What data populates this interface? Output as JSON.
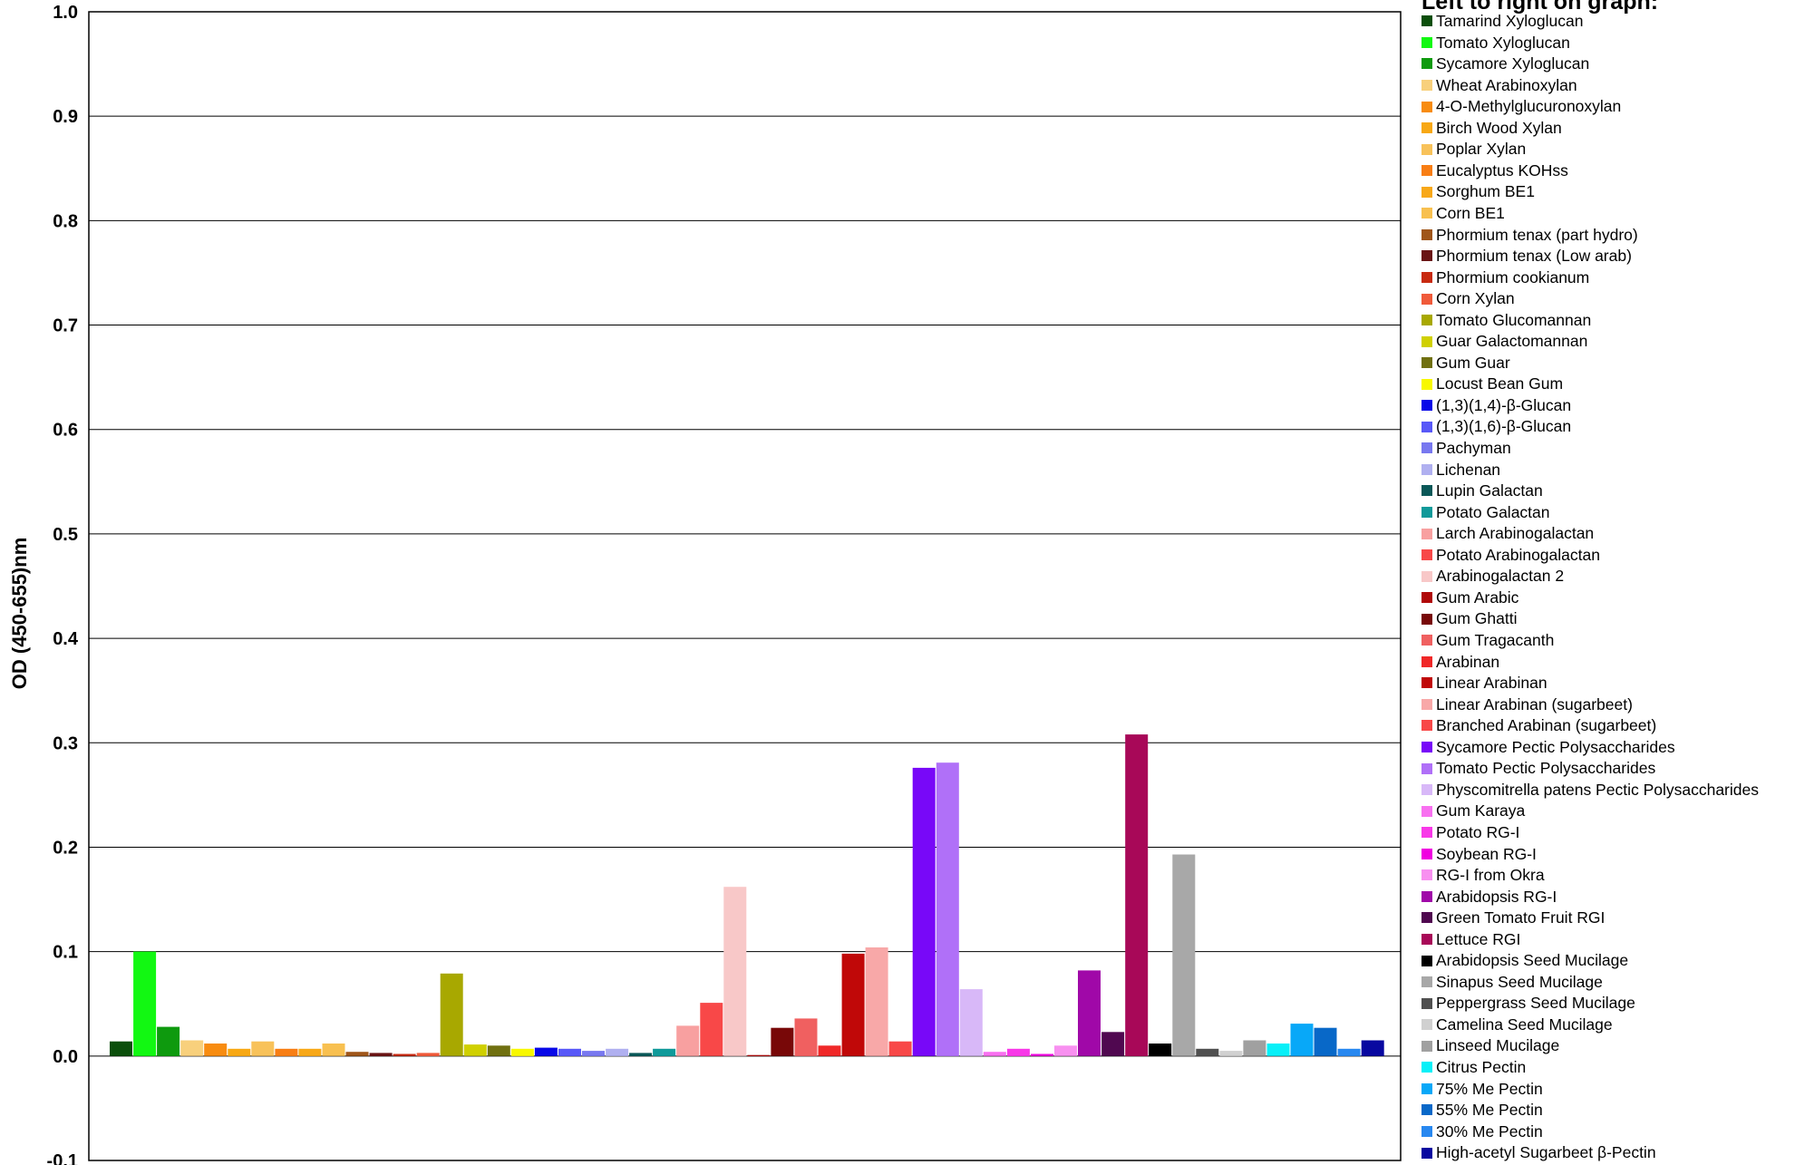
{
  "chart_data": {
    "type": "bar",
    "title": "",
    "xlabel": "",
    "ylabel": "OD (450-655)nm",
    "ylim": [
      -0.1,
      1.0
    ],
    "yticks": [
      "1.0",
      "0.9",
      "0.8",
      "0.7",
      "0.6",
      "0.5",
      "0.4",
      "0.3",
      "0.2",
      "0.1",
      "0.0",
      "-0.1"
    ],
    "grid": true,
    "legend_title": "Left to right on graph:",
    "legend_position": "right",
    "series": [
      {
        "name": "Tamarind Xyloglucan",
        "value": 0.014,
        "color": "#0b4f0b"
      },
      {
        "name": "Tomato Xyloglucan",
        "value": 0.1,
        "color": "#12f812"
      },
      {
        "name": "Sycamore Xyloglucan",
        "value": 0.028,
        "color": "#0e9a0e"
      },
      {
        "name": "Wheat Arabinoxylan",
        "value": 0.015,
        "color": "#f8d07c"
      },
      {
        "name": "4-O-Methylglucuronoxylan",
        "value": 0.012,
        "color": "#f88c10"
      },
      {
        "name": "Birch Wood Xylan",
        "value": 0.007,
        "color": "#f8a814"
      },
      {
        "name": "Poplar Xylan",
        "value": 0.014,
        "color": "#f8c25a"
      },
      {
        "name": "Eucalyptus KOHss",
        "value": 0.007,
        "color": "#f87e14"
      },
      {
        "name": "Sorghum BE1",
        "value": 0.007,
        "color": "#f8a818"
      },
      {
        "name": "Corn BE1",
        "value": 0.012,
        "color": "#f8c050"
      },
      {
        "name": "Phormium tenax (part hydro)",
        "value": 0.004,
        "color": "#a0561a"
      },
      {
        "name": "Phormium tenax (Low arab)",
        "value": 0.003,
        "color": "#6a1414"
      },
      {
        "name": "Phormium cookianum",
        "value": 0.002,
        "color": "#c82a10"
      },
      {
        "name": "Corn Xylan",
        "value": 0.003,
        "color": "#f05a3a"
      },
      {
        "name": "Tomato Glucomannan",
        "value": 0.079,
        "color": "#a8a800"
      },
      {
        "name": "Guar Galactomannan",
        "value": 0.011,
        "color": "#d0d000"
      },
      {
        "name": "Gum Guar",
        "value": 0.01,
        "color": "#707010"
      },
      {
        "name": "Locust Bean Gum",
        "value": 0.007,
        "color": "#f8f800"
      },
      {
        "name": "(1,3)(1,4)-β-Glucan",
        "value": 0.008,
        "color": "#0808e8"
      },
      {
        "name": "(1,3)(1,6)-β-Glucan",
        "value": 0.007,
        "color": "#5858f8"
      },
      {
        "name": "Pachyman",
        "value": 0.005,
        "color": "#7878f0"
      },
      {
        "name": "Lichenan",
        "value": 0.007,
        "color": "#b0b0f0"
      },
      {
        "name": "Lupin Galactan",
        "value": 0.003,
        "color": "#0a5858"
      },
      {
        "name": "Potato Galactan",
        "value": 0.007,
        "color": "#109a9a"
      },
      {
        "name": "Larch Arabinogalactan",
        "value": 0.029,
        "color": "#f8a0a0"
      },
      {
        "name": "Potato Arabinogalactan",
        "value": 0.051,
        "color": "#f84848"
      },
      {
        "name": "Arabinogalactan 2",
        "value": 0.162,
        "color": "#f8c8c8"
      },
      {
        "name": "Gum Arabic",
        "value": 0.001,
        "color": "#b00808"
      },
      {
        "name": "Gum Ghatti",
        "value": 0.027,
        "color": "#780808"
      },
      {
        "name": "Gum Tragacanth",
        "value": 0.036,
        "color": "#f06060"
      },
      {
        "name": "Arabinan",
        "value": 0.01,
        "color": "#f02828"
      },
      {
        "name": "Linear Arabinan",
        "value": 0.098,
        "color": "#c00808"
      },
      {
        "name": "Linear Arabinan (sugarbeet)",
        "value": 0.104,
        "color": "#f8a8a8"
      },
      {
        "name": "Branched Arabinan (sugarbeet)",
        "value": 0.014,
        "color": "#f84848"
      },
      {
        "name": "Sycamore Pectic Polysaccharides",
        "value": 0.276,
        "color": "#7808f8"
      },
      {
        "name": "Tomato Pectic Polysaccharides",
        "value": 0.281,
        "color": "#b070f8"
      },
      {
        "name": "Physcomitrella patens Pectic Polysaccharides",
        "value": 0.064,
        "color": "#d8b8f8"
      },
      {
        "name": "Gum Karaya",
        "value": 0.004,
        "color": "#f870f0"
      },
      {
        "name": "Potato RG-I",
        "value": 0.007,
        "color": "#f838e8"
      },
      {
        "name": "Soybean RG-I",
        "value": 0.002,
        "color": "#f000e0"
      },
      {
        "name": "RG-I from Okra",
        "value": 0.01,
        "color": "#f890f0"
      },
      {
        "name": "Arabidopsis RG-I",
        "value": 0.082,
        "color": "#a008a8"
      },
      {
        "name": "Green Tomato Fruit RGI",
        "value": 0.023,
        "color": "#500850"
      },
      {
        "name": "Lettuce RGI",
        "value": 0.308,
        "color": "#a80858"
      },
      {
        "name": "Arabidopsis Seed Mucilage",
        "value": 0.012,
        "color": "#000000"
      },
      {
        "name": "Sinapus Seed Mucilage",
        "value": 0.193,
        "color": "#a8a8a8"
      },
      {
        "name": "Peppergrass Seed Mucilage",
        "value": 0.007,
        "color": "#505050"
      },
      {
        "name": "Camelina Seed Mucilage",
        "value": 0.005,
        "color": "#d0d0d0"
      },
      {
        "name": "Linseed Mucilage",
        "value": 0.015,
        "color": "#a0a0a0"
      },
      {
        "name": "Citrus Pectin",
        "value": 0.012,
        "color": "#08f0f8"
      },
      {
        "name": "75% Me Pectin",
        "value": 0.031,
        "color": "#08a8f8"
      },
      {
        "name": "55% Me Pectin",
        "value": 0.027,
        "color": "#0868c8"
      },
      {
        "name": "30% Me Pectin",
        "value": 0.007,
        "color": "#2888f0"
      },
      {
        "name": "High-acetyl Sugarbeet β-Pectin",
        "value": 0.015,
        "color": "#0808a0"
      }
    ]
  }
}
